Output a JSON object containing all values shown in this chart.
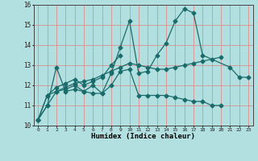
{
  "xlabel": "Humidex (Indice chaleur)",
  "ylabel": "",
  "background_color": "#b2e0e0",
  "grid_color": "#e08080",
  "line_color": "#1a6b6b",
  "xlim": [
    -0.5,
    23.5
  ],
  "ylim": [
    10,
    16
  ],
  "yticks": [
    10,
    11,
    12,
    13,
    14,
    15,
    16
  ],
  "xtick_labels": [
    "0",
    "1",
    "2",
    "3",
    "4",
    "5",
    "6",
    "7",
    "8",
    "9",
    "10",
    "11",
    "12",
    "13",
    "14",
    "15",
    "16",
    "17",
    "18",
    "19",
    "20",
    "21",
    "22",
    "23"
  ],
  "series": [
    [
      10.3,
      11.0,
      12.9,
      11.7,
      11.8,
      11.7,
      11.6,
      11.6,
      12.6,
      13.9,
      15.2,
      12.6,
      12.7,
      13.5,
      14.1,
      15.2,
      15.8,
      15.6,
      13.5,
      null,
      null,
      12.9,
      12.4,
      12.4
    ],
    [
      10.3,
      11.0,
      11.7,
      11.8,
      12.0,
      11.7,
      12.0,
      11.6,
      12.0,
      12.7,
      12.8,
      11.5,
      11.5,
      11.5,
      11.5,
      11.4,
      11.3,
      11.2,
      11.2,
      11.0,
      11.0,
      null,
      null,
      null
    ],
    [
      10.3,
      11.5,
      11.7,
      11.9,
      12.1,
      12.2,
      12.3,
      12.5,
      12.7,
      12.9,
      13.1,
      13.0,
      12.9,
      12.8,
      12.8,
      12.9,
      13.0,
      13.1,
      13.2,
      13.3,
      13.4,
      null,
      null,
      null
    ],
    [
      10.3,
      11.5,
      11.9,
      12.1,
      12.3,
      12.0,
      12.2,
      12.4,
      13.0,
      13.5,
      null,
      null,
      null,
      null,
      null,
      null,
      null,
      null,
      null,
      null,
      null,
      null,
      null,
      null
    ]
  ],
  "marker": "D",
  "markersize": 2.5,
  "linewidth": 0.9
}
